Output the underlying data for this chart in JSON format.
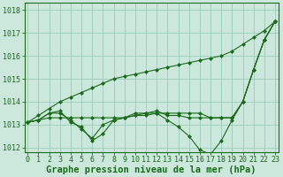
{
  "xlabel": "Graphe pression niveau de la mer (hPa)",
  "bg_color": "#cce8dc",
  "grid_color": "#99ccbb",
  "line_color": "#1a6b1a",
  "x": [
    0,
    1,
    2,
    3,
    4,
    5,
    6,
    7,
    8,
    9,
    10,
    11,
    12,
    13,
    14,
    15,
    16,
    17,
    18,
    19,
    20,
    21,
    22,
    23
  ],
  "series_diagonal": [
    1013.1,
    1013.4,
    1013.7,
    1014.0,
    1014.2,
    1014.4,
    1014.6,
    1014.8,
    1015.0,
    1015.1,
    1015.2,
    1015.3,
    1015.4,
    1015.5,
    1015.6,
    1015.7,
    1015.8,
    1015.9,
    1016.0,
    1016.2,
    1016.5,
    1016.8,
    1017.1,
    1017.5
  ],
  "series_flat": [
    1013.1,
    1013.2,
    1013.3,
    1013.3,
    1013.3,
    1013.3,
    1013.3,
    1013.3,
    1013.3,
    1013.3,
    1013.4,
    1013.4,
    1013.5,
    1013.5,
    1013.5,
    1013.5,
    1013.5,
    1013.3,
    1013.3,
    1013.3,
    1014.0,
    1015.4,
    1016.7,
    1017.5
  ],
  "series_zigzag": [
    1013.1,
    1013.2,
    1013.5,
    1013.6,
    1013.1,
    1012.9,
    1012.3,
    1012.6,
    1013.2,
    1013.3,
    1013.5,
    1013.5,
    1013.6,
    1013.4,
    1013.4,
    1013.3,
    1013.3,
    1013.3,
    1013.3,
    1013.3,
    1014.0,
    1015.4,
    1016.7,
    1017.5
  ],
  "series_dip": [
    1013.1,
    1013.2,
    1013.5,
    1013.5,
    1013.2,
    1012.8,
    1012.4,
    1013.0,
    1013.2,
    1013.3,
    1013.4,
    1013.5,
    1013.5,
    1013.2,
    1012.9,
    1012.5,
    1011.9,
    1011.7,
    1012.3,
    1013.2,
    1014.0,
    1015.4,
    1016.7,
    1017.5
  ],
  "ylim_min": 1011.8,
  "ylim_max": 1018.3,
  "yticks": [
    1012,
    1013,
    1014,
    1015,
    1016,
    1017,
    1018
  ],
  "tick_fontsize": 6,
  "label_fontsize": 7.5
}
